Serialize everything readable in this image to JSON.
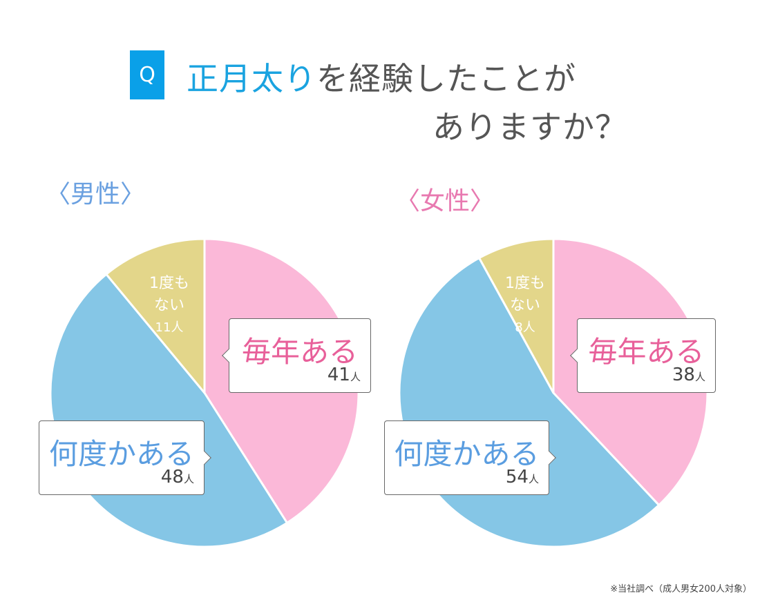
{
  "header": {
    "q_badge": "Q",
    "title_highlight": "正月太り",
    "title_rest": "を経験したことが",
    "title_line2": "ありますか？"
  },
  "colors": {
    "pink": "#fbb8d8",
    "blue": "#85c6e6",
    "yellow": "#e3d68a",
    "title_blue": "#1aa3e0",
    "male_label": "#6aa0e0",
    "female_label": "#e879b0",
    "every_year_text": "#e8609a",
    "several_text": "#5a9de0"
  },
  "chart_data": [
    {
      "type": "pie",
      "title": "〈男性〉",
      "unit": "人",
      "slices": [
        {
          "label": "毎年ある",
          "value": 41,
          "color": "#fbb8d8"
        },
        {
          "label": "何度かある",
          "value": 48,
          "color": "#85c6e6"
        },
        {
          "label_lines": [
            "1度も",
            "ない"
          ],
          "label": "1度もない",
          "value": 11,
          "color": "#e3d68a"
        }
      ]
    },
    {
      "type": "pie",
      "title": "〈女性〉",
      "unit": "人",
      "slices": [
        {
          "label": "毎年ある",
          "value": 38,
          "color": "#fbb8d8"
        },
        {
          "label": "何度かある",
          "value": 54,
          "color": "#85c6e6"
        },
        {
          "label_lines": [
            "1度も",
            "ない"
          ],
          "label": "1度もない",
          "value": 8,
          "color": "#e3d68a"
        }
      ]
    }
  ],
  "footnote": "※当社調べ（成人男女200人対象）"
}
